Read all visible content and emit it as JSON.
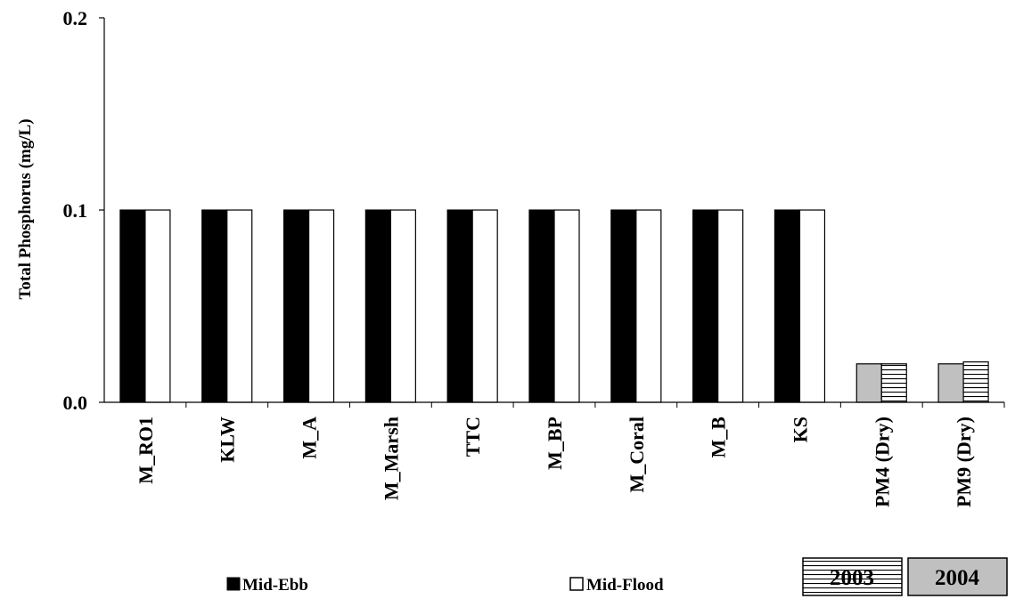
{
  "chart_data": {
    "type": "bar",
    "title": "",
    "xlabel": "",
    "ylabel": "Total Phosphorus (mg/L)",
    "ylim": [
      0.0,
      0.2
    ],
    "yticks": [
      "0.0",
      "0.1",
      "0.2"
    ],
    "categories": [
      "M_RO1",
      "KLW",
      "M_A",
      "M_Marsh",
      "TTC",
      "M_BP",
      "M_Coral",
      "M_B",
      "KS",
      "PM4 (Dry)",
      "PM9 (Dry)"
    ],
    "series": [
      {
        "name": "Mid-Ebb",
        "values": [
          0.1,
          0.1,
          0.1,
          0.1,
          0.1,
          0.1,
          0.1,
          0.1,
          0.1,
          0.02,
          0.02
        ]
      },
      {
        "name": "Mid-Flood",
        "values": [
          0.1,
          0.1,
          0.1,
          0.1,
          0.1,
          0.1,
          0.1,
          0.1,
          0.1,
          0.02,
          0.021
        ]
      }
    ],
    "legend": [
      "Mid-Ebb",
      "Mid-Flood"
    ],
    "legend_placement": "bottom",
    "year_boxes": [
      "2003",
      "2004"
    ],
    "grid": false
  }
}
